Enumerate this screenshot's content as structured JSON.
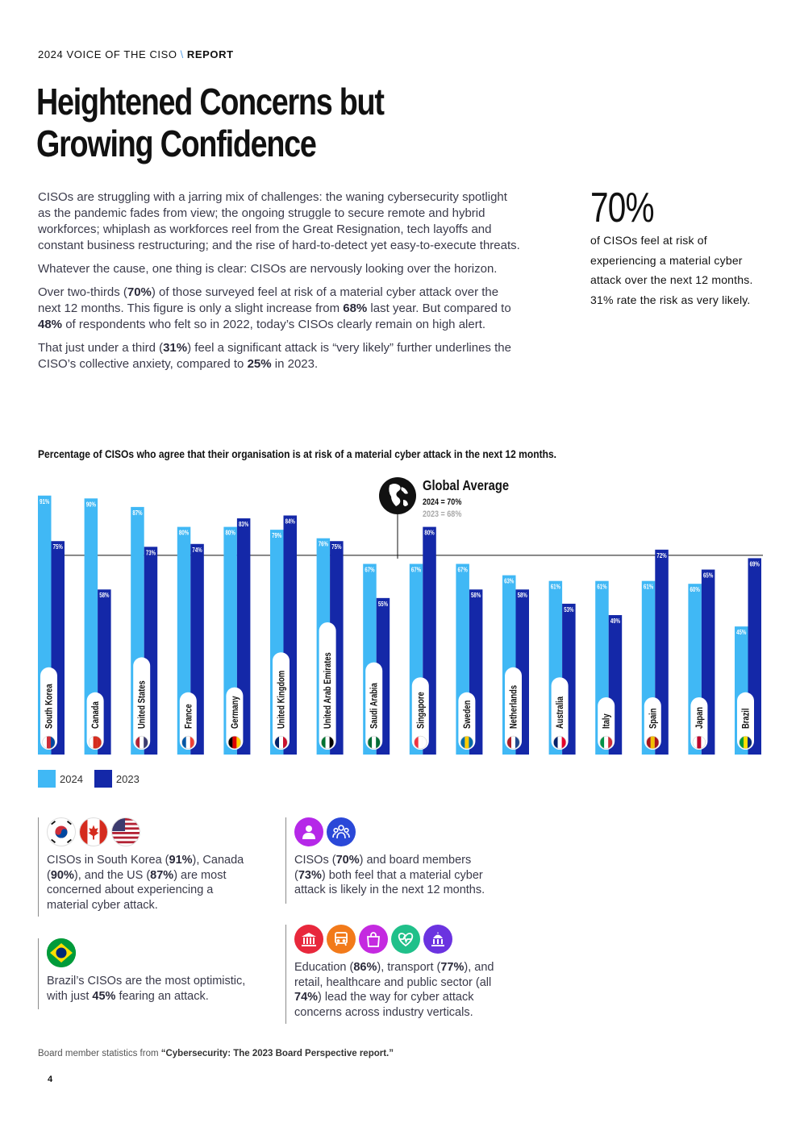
{
  "header": {
    "report_name": "2024 VOICE OF THE CISO",
    "separator": "\\",
    "section": "REPORT"
  },
  "title": {
    "line1": "Heightened Concerns but",
    "line2": "Growing Confidence"
  },
  "intro": {
    "p1": "CISOs are struggling with a jarring mix of challenges: the waning cybersecurity spotlight as the pandemic fades from view; the ongoing struggle to secure remote and hybrid workforces; whiplash as workforces reel from the Great Resignation, tech layoffs and constant business restructuring; and the rise of hard-to-detect yet easy-to-execute threats.",
    "p2": "Whatever the cause, one thing is clear: CISOs are nervously looking over the horizon.",
    "p3a": "Over two-thirds (",
    "p3b": "70%",
    "p3c": ") of those surveyed feel at risk of a material cyber attack over the next 12 months. This figure is only a slight increase from ",
    "p3d": "68%",
    "p3e": " last year. But compared to ",
    "p3f": "48%",
    "p3g": " of respondents who felt so in 2022, today’s CISOs clearly remain on high alert.",
    "p4a": "That just under a third (",
    "p4b": "31%",
    "p4c": ") feel a significant attack is “very likely” further underlines the CISO’s collective anxiety, compared to ",
    "p4d": "25%",
    "p4e": " in 2023."
  },
  "callout": {
    "big": "70%",
    "line1": "of CISOs feel at risk of",
    "line2": "experiencing a material cyber",
    "line3": "attack over the next 12 months.",
    "line4": "31% rate the risk as very likely."
  },
  "chart_title": "Percentage of CISOs who agree that their organisation is at risk of a material cyber attack in the next 12 months.",
  "chart_data": {
    "type": "bar",
    "categories": [
      "South Korea",
      "Canada",
      "United States",
      "France",
      "Germany",
      "United Kingdom",
      "United Arab Emirates",
      "Saudi Arabia",
      "Singapore",
      "Sweden",
      "Netherlands",
      "Australia",
      "Italy",
      "Spain",
      "Japan",
      "Brazil"
    ],
    "series": [
      {
        "name": "2024",
        "values": [
          91,
          90,
          87,
          80,
          80,
          79,
          76,
          67,
          67,
          67,
          63,
          61,
          61,
          61,
          60,
          45
        ]
      },
      {
        "name": "2023",
        "values": [
          75,
          58,
          73,
          74,
          83,
          84,
          75,
          55,
          80,
          58,
          58,
          53,
          49,
          72,
          65,
          69
        ]
      }
    ],
    "labels_2024": [
      "91%",
      "90%",
      "87%",
      "80%",
      "80%",
      "79%",
      "76%",
      "67%",
      "67%",
      "67%",
      "63%",
      "61%",
      "61%",
      "61%",
      "60%",
      "45%"
    ],
    "labels_2023": [
      "75%",
      "58%",
      "73%",
      "74%",
      "83%",
      "84%",
      "75%",
      "55%",
      "80%",
      "58%",
      "58%",
      "53%",
      "49%",
      "72%",
      "65%",
      "69%"
    ],
    "ylim": [
      0,
      100
    ],
    "reference": {
      "title": "Global Average",
      "line_2024": "2024 = 70%",
      "line_2023": "2023 = 68%",
      "value": 70
    },
    "colors": {
      "2024": "#40b8f5",
      "2023": "#1428a8"
    }
  },
  "legend": {
    "a": "2024",
    "b": "2023"
  },
  "info1": {
    "t1": "CISOs in South Korea (",
    "b1": "91%",
    "t2": "), Canada (",
    "b2": "90%",
    "t3": "), and the US (",
    "b3": "87%",
    "t4": ") are most concerned about experiencing a material cyber attack."
  },
  "info2": {
    "t1": "Brazil’s CISOs are the most optimistic, with just ",
    "b1": "45%",
    "t2": " fearing an attack."
  },
  "info3": {
    "t1": "CISOs (",
    "b1": "70%",
    "t2": ") and board members (",
    "b2": "73%",
    "t3": ") both feel that a material cyber attack is likely in the next 12 months."
  },
  "info4": {
    "t1": "Education (",
    "b1": "86%",
    "t2": "), transport (",
    "b2": "77%",
    "t3": "), and retail, healthcare and public sector (all ",
    "b3": "74%",
    "t4": ") lead the way for cyber attack concerns across industry verticals."
  },
  "footnote": {
    "t1": "Board member statistics from ",
    "b1": "“Cybersecurity: The 2023 Board Perspective report.”"
  },
  "page_number": "4"
}
